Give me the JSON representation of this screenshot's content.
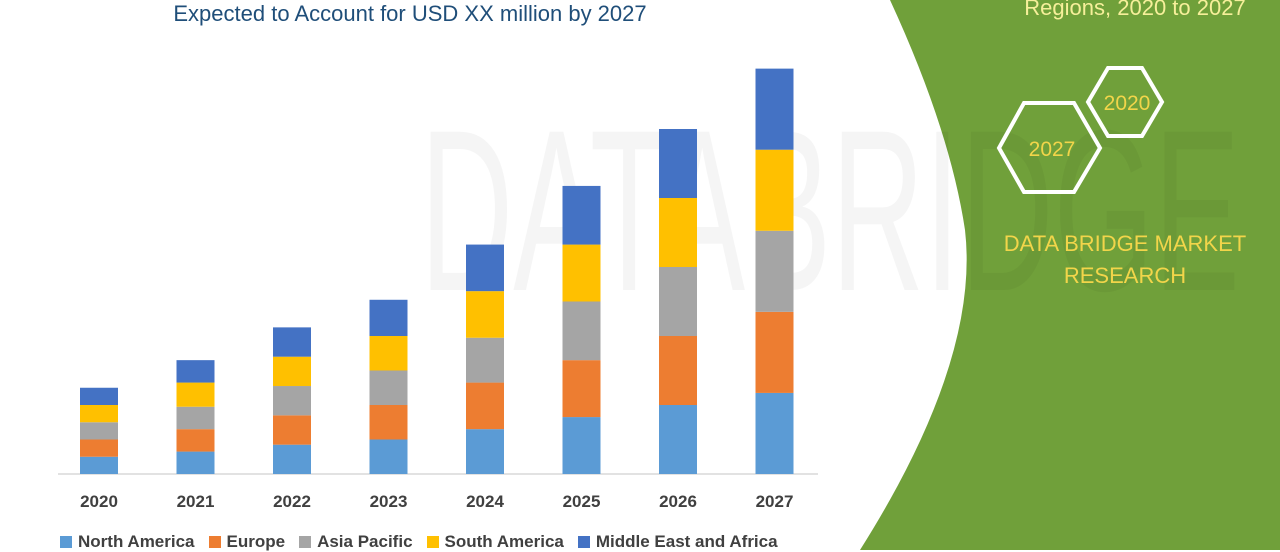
{
  "chart_data": {
    "type": "bar",
    "stacked": true,
    "title": "Expected to Account for USD XX million by 2027",
    "categories": [
      "2020",
      "2021",
      "2022",
      "2023",
      "2024",
      "2025",
      "2026",
      "2027"
    ],
    "series": [
      {
        "name": "North America",
        "color": "#5b9bd5",
        "values": [
          1.0,
          1.3,
          1.7,
          2.0,
          2.6,
          3.3,
          4.0,
          4.7
        ]
      },
      {
        "name": "Europe",
        "color": "#ed7d31",
        "values": [
          1.0,
          1.3,
          1.7,
          2.0,
          2.7,
          3.3,
          4.0,
          4.7
        ]
      },
      {
        "name": "Asia Pacific",
        "color": "#a5a5a5",
        "values": [
          1.0,
          1.3,
          1.7,
          2.0,
          2.6,
          3.4,
          4.0,
          4.7
        ]
      },
      {
        "name": "South America",
        "color": "#ffc000",
        "values": [
          1.0,
          1.4,
          1.7,
          2.0,
          2.7,
          3.3,
          4.0,
          4.7
        ]
      },
      {
        "name": "Middle East and Africa",
        "color": "#4472c4",
        "values": [
          1.0,
          1.3,
          1.7,
          2.1,
          2.7,
          3.4,
          4.0,
          4.7
        ]
      }
    ],
    "ylim": [
      0,
      24
    ],
    "grid": false,
    "legend_position": "bottom"
  },
  "header": {
    "top_right_text": "Regions, 2020 to 2027"
  },
  "brand": {
    "hex_a": "2020",
    "hex_b": "2027",
    "name_line1": "DATA BRIDGE MARKET",
    "name_line2": "RESEARCH",
    "panel_color": "#70a03a",
    "accent_color": "#f2d54a"
  }
}
